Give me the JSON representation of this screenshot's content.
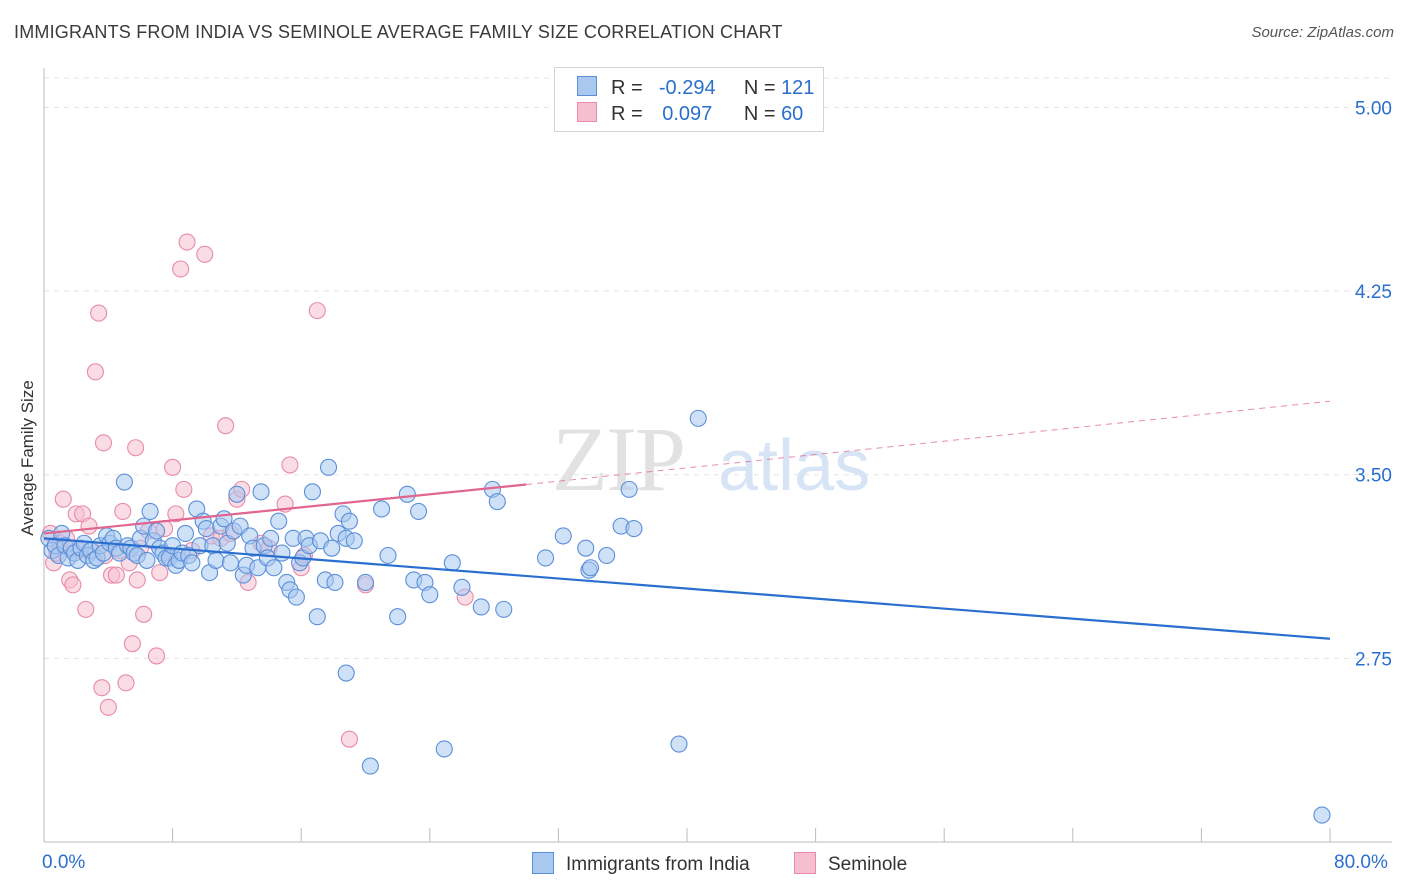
{
  "header": {
    "title": "IMMIGRANTS FROM INDIA VS SEMINOLE AVERAGE FAMILY SIZE CORRELATION CHART",
    "source": "Source: ZipAtlas.com"
  },
  "legend": {
    "rows": [
      {
        "r_label": "R =",
        "r_value": "-0.294",
        "n_label": "N =",
        "n_value": "121"
      },
      {
        "r_label": "R =",
        "r_value": "0.097",
        "n_label": "N =",
        "n_value": "60"
      }
    ]
  },
  "bottom_legend": [
    "Immigrants from India",
    "Seminole"
  ],
  "watermark": {
    "zip": "ZIP",
    "atlas": "atlas"
  },
  "colors": {
    "india_fill": "#a8c8f0",
    "india_stroke": "#5b8fd8",
    "india_line": "#2a6fcf",
    "seminole_fill": "#f6bfd0",
    "seminole_stroke": "#e88aa8",
    "seminole_line": "#e0658f",
    "tick_label": "#2a6fcf",
    "grid": "#e3e3e3"
  },
  "chart_data": {
    "type": "scatter",
    "title": "IMMIGRANTS FROM INDIA VS SEMINOLE AVERAGE FAMILY SIZE CORRELATION CHART",
    "xlabel": "",
    "ylabel": "Average Family Size",
    "xlim": [
      0,
      80
    ],
    "ylim": [
      2.0,
      5.12
    ],
    "x_tick_labels": [
      "0.0%",
      "80.0%"
    ],
    "y_ticks": [
      2.75,
      3.5,
      4.25,
      5.0
    ],
    "y_tick_labels": [
      "2.75",
      "3.50",
      "4.25",
      "5.00"
    ],
    "grid": true,
    "legend_position": "top-center",
    "series": [
      {
        "name": "Immigrants from India",
        "trend": {
          "x0": 0,
          "y0": 3.24,
          "x1": 80,
          "y1": 2.83
        },
        "points": [
          [
            0.3,
            3.24
          ],
          [
            0.5,
            3.19
          ],
          [
            0.7,
            3.21
          ],
          [
            0.9,
            3.17
          ],
          [
            1.1,
            3.26
          ],
          [
            1.3,
            3.21
          ],
          [
            1.5,
            3.16
          ],
          [
            1.7,
            3.2
          ],
          [
            1.9,
            3.18
          ],
          [
            2.1,
            3.15
          ],
          [
            2.3,
            3.2
          ],
          [
            2.5,
            3.22
          ],
          [
            2.7,
            3.17
          ],
          [
            2.9,
            3.19
          ],
          [
            3.1,
            3.15
          ],
          [
            3.3,
            3.16
          ],
          [
            3.5,
            3.21
          ],
          [
            3.7,
            3.18
          ],
          [
            3.9,
            3.25
          ],
          [
            4.1,
            3.22
          ],
          [
            4.3,
            3.24
          ],
          [
            4.5,
            3.2
          ],
          [
            4.7,
            3.18
          ],
          [
            5.0,
            3.47
          ],
          [
            5.2,
            3.21
          ],
          [
            5.4,
            3.2
          ],
          [
            5.6,
            3.18
          ],
          [
            5.8,
            3.17
          ],
          [
            6.0,
            3.24
          ],
          [
            6.2,
            3.29
          ],
          [
            6.4,
            3.15
          ],
          [
            6.6,
            3.35
          ],
          [
            6.8,
            3.23
          ],
          [
            7.0,
            3.27
          ],
          [
            7.2,
            3.2
          ],
          [
            7.4,
            3.18
          ],
          [
            7.6,
            3.16
          ],
          [
            7.8,
            3.16
          ],
          [
            8.0,
            3.21
          ],
          [
            8.2,
            3.13
          ],
          [
            8.4,
            3.15
          ],
          [
            8.6,
            3.18
          ],
          [
            8.8,
            3.26
          ],
          [
            9.0,
            3.17
          ],
          [
            9.2,
            3.14
          ],
          [
            9.5,
            3.36
          ],
          [
            9.7,
            3.21
          ],
          [
            9.9,
            3.31
          ],
          [
            10.1,
            3.28
          ],
          [
            10.3,
            3.1
          ],
          [
            10.5,
            3.21
          ],
          [
            10.7,
            3.15
          ],
          [
            11.0,
            3.29
          ],
          [
            11.2,
            3.32
          ],
          [
            11.4,
            3.22
          ],
          [
            11.6,
            3.14
          ],
          [
            11.8,
            3.27
          ],
          [
            12.0,
            3.42
          ],
          [
            12.2,
            3.29
          ],
          [
            12.4,
            3.09
          ],
          [
            12.6,
            3.13
          ],
          [
            12.8,
            3.25
          ],
          [
            13.0,
            3.2
          ],
          [
            13.3,
            3.12
          ],
          [
            13.5,
            3.43
          ],
          [
            13.7,
            3.21
          ],
          [
            13.9,
            3.16
          ],
          [
            14.1,
            3.24
          ],
          [
            14.3,
            3.12
          ],
          [
            14.6,
            3.31
          ],
          [
            14.8,
            3.18
          ],
          [
            15.1,
            3.06
          ],
          [
            15.3,
            3.03
          ],
          [
            15.5,
            3.24
          ],
          [
            15.7,
            3.0
          ],
          [
            15.9,
            3.14
          ],
          [
            16.1,
            3.16
          ],
          [
            16.3,
            3.24
          ],
          [
            16.5,
            3.21
          ],
          [
            16.7,
            3.43
          ],
          [
            17.0,
            2.92
          ],
          [
            17.2,
            3.23
          ],
          [
            17.5,
            3.07
          ],
          [
            17.7,
            3.53
          ],
          [
            17.9,
            3.2
          ],
          [
            18.1,
            3.06
          ],
          [
            18.3,
            3.26
          ],
          [
            18.6,
            3.34
          ],
          [
            18.8,
            3.24
          ],
          [
            19.0,
            3.31
          ],
          [
            19.3,
            3.23
          ],
          [
            20.0,
            3.06
          ],
          [
            21.0,
            3.36
          ],
          [
            21.4,
            3.17
          ],
          [
            22.0,
            2.92
          ],
          [
            22.6,
            3.42
          ],
          [
            23.0,
            3.07
          ],
          [
            23.3,
            3.35
          ],
          [
            23.7,
            3.06
          ],
          [
            24.0,
            3.01
          ],
          [
            25.4,
            3.14
          ],
          [
            26.0,
            3.04
          ],
          [
            27.2,
            2.96
          ],
          [
            27.9,
            3.44
          ],
          [
            28.2,
            3.39
          ],
          [
            28.6,
            2.95
          ],
          [
            31.2,
            3.16
          ],
          [
            32.3,
            3.25
          ],
          [
            33.7,
            3.2
          ],
          [
            33.9,
            3.11
          ],
          [
            34.0,
            3.12
          ],
          [
            35.0,
            3.17
          ],
          [
            35.9,
            3.29
          ],
          [
            36.4,
            3.44
          ],
          [
            36.7,
            3.28
          ],
          [
            40.7,
            3.73
          ],
          [
            18.8,
            2.69
          ],
          [
            20.3,
            2.31
          ],
          [
            24.9,
            2.38
          ],
          [
            39.5,
            2.4
          ],
          [
            79.5,
            2.11
          ]
        ]
      },
      {
        "name": "Seminole",
        "trend": {
          "x0": 0,
          "y0": 3.26,
          "x1": 30,
          "y1": 3.46,
          "dash_to_x": 80,
          "dash_to_y": 3.8
        },
        "points": [
          [
            0.4,
            3.26
          ],
          [
            0.6,
            3.14
          ],
          [
            0.8,
            3.18
          ],
          [
            1.0,
            3.22
          ],
          [
            1.2,
            3.4
          ],
          [
            1.4,
            3.24
          ],
          [
            1.6,
            3.07
          ],
          [
            1.8,
            3.05
          ],
          [
            2.0,
            3.34
          ],
          [
            2.2,
            3.19
          ],
          [
            2.4,
            3.34
          ],
          [
            2.6,
            2.95
          ],
          [
            2.8,
            3.29
          ],
          [
            3.0,
            3.19
          ],
          [
            3.2,
            3.92
          ],
          [
            3.4,
            4.16
          ],
          [
            3.6,
            2.63
          ],
          [
            3.7,
            3.63
          ],
          [
            3.8,
            3.17
          ],
          [
            4.0,
            2.55
          ],
          [
            4.2,
            3.09
          ],
          [
            4.5,
            3.09
          ],
          [
            4.7,
            3.19
          ],
          [
            4.9,
            3.35
          ],
          [
            5.1,
            2.65
          ],
          [
            5.3,
            3.14
          ],
          [
            5.5,
            2.81
          ],
          [
            5.7,
            3.61
          ],
          [
            5.8,
            3.07
          ],
          [
            6.0,
            3.2
          ],
          [
            6.2,
            2.93
          ],
          [
            6.5,
            3.27
          ],
          [
            7.0,
            2.76
          ],
          [
            7.2,
            3.1
          ],
          [
            7.5,
            3.28
          ],
          [
            7.8,
            3.17
          ],
          [
            8.0,
            3.53
          ],
          [
            8.2,
            3.34
          ],
          [
            8.5,
            4.34
          ],
          [
            8.7,
            3.44
          ],
          [
            8.9,
            4.45
          ],
          [
            9.2,
            3.19
          ],
          [
            10.0,
            4.4
          ],
          [
            10.4,
            3.25
          ],
          [
            11.0,
            3.24
          ],
          [
            11.3,
            3.7
          ],
          [
            11.6,
            3.26
          ],
          [
            12.0,
            3.4
          ],
          [
            12.3,
            3.44
          ],
          [
            12.7,
            3.06
          ],
          [
            13.5,
            3.22
          ],
          [
            14.0,
            3.2
          ],
          [
            15.0,
            3.38
          ],
          [
            15.3,
            3.54
          ],
          [
            16.0,
            3.12
          ],
          [
            16.2,
            3.17
          ],
          [
            17.0,
            4.17
          ],
          [
            19.0,
            2.42
          ],
          [
            20.0,
            3.05
          ],
          [
            26.2,
            3.0
          ]
        ]
      }
    ]
  }
}
